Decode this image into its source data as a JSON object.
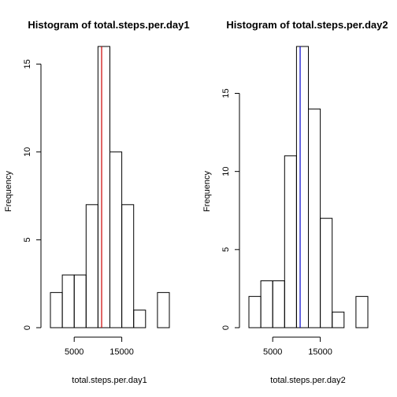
{
  "chart_data": [
    {
      "type": "bar",
      "title": "Histogram of total.steps.per.day1",
      "xlabel": "total.steps.per.day1",
      "ylabel": "Frequency",
      "bins": [
        {
          "x0": 0,
          "x1": 2500,
          "count": 2
        },
        {
          "x0": 2500,
          "x1": 5000,
          "count": 3
        },
        {
          "x0": 5000,
          "x1": 7500,
          "count": 3
        },
        {
          "x0": 7500,
          "x1": 10000,
          "count": 7
        },
        {
          "x0": 10000,
          "x1": 12500,
          "count": 16
        },
        {
          "x0": 12500,
          "x1": 15000,
          "count": 10
        },
        {
          "x0": 15000,
          "x1": 17500,
          "count": 7
        },
        {
          "x0": 17500,
          "x1": 20000,
          "count": 1
        },
        {
          "x0": 20000,
          "x1": 22500,
          "count": 0
        },
        {
          "x0": 22500,
          "x1": 25000,
          "count": 2
        }
      ],
      "mean_line": {
        "x": 10766,
        "color": "#cc0000"
      },
      "xlim": [
        0,
        25000
      ],
      "ylim": [
        0,
        16
      ],
      "x_ticks": [
        5000,
        15000
      ],
      "x_tick_labels": [
        "5000",
        "15000"
      ],
      "y_ticks": [
        0,
        5,
        10,
        15
      ],
      "y_tick_labels": [
        "0",
        "5",
        "10",
        "15"
      ],
      "grid": false
    },
    {
      "type": "bar",
      "title": "Histogram of total.steps.per.day2",
      "xlabel": "total.steps.per.day2",
      "ylabel": "Frequency",
      "bins": [
        {
          "x0": 0,
          "x1": 2500,
          "count": 2
        },
        {
          "x0": 2500,
          "x1": 5000,
          "count": 3
        },
        {
          "x0": 5000,
          "x1": 7500,
          "count": 3
        },
        {
          "x0": 7500,
          "x1": 10000,
          "count": 11
        },
        {
          "x0": 10000,
          "x1": 12500,
          "count": 18
        },
        {
          "x0": 12500,
          "x1": 15000,
          "count": 14
        },
        {
          "x0": 15000,
          "x1": 17500,
          "count": 7
        },
        {
          "x0": 17500,
          "x1": 20000,
          "count": 1
        },
        {
          "x0": 20000,
          "x1": 22500,
          "count": 0
        },
        {
          "x0": 22500,
          "x1": 25000,
          "count": 2
        }
      ],
      "mean_line": {
        "x": 10766,
        "color": "#0000cc"
      },
      "xlim": [
        0,
        25000
      ],
      "ylim": [
        0,
        18
      ],
      "x_ticks": [
        5000,
        15000
      ],
      "x_tick_labels": [
        "5000",
        "15000"
      ],
      "y_ticks": [
        0,
        5,
        10,
        15
      ],
      "y_tick_labels": [
        "0",
        "5",
        "10",
        "15"
      ],
      "grid": false
    }
  ]
}
